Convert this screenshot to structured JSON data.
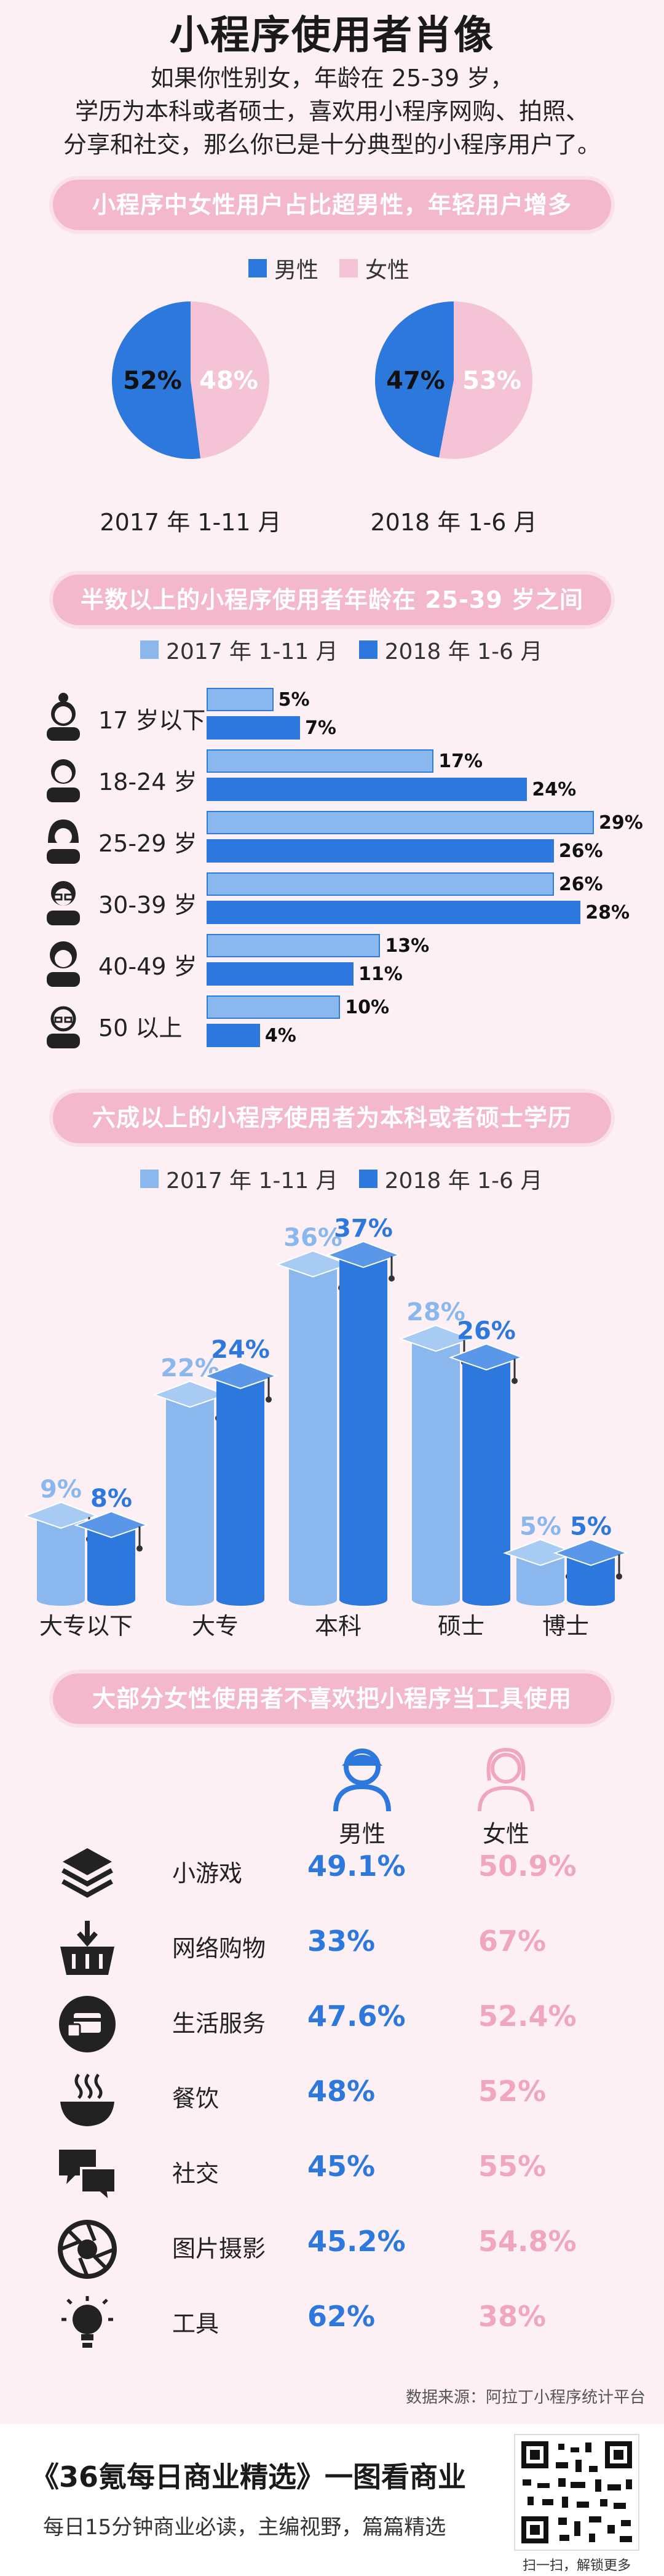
{
  "header": {
    "title": "小程序使用者肖像",
    "intro_lines": [
      "如果你性别女，年龄在 25-39 岁，",
      "学历为本科或者硕士，喜欢用小程序网购、拍照、",
      "分享和社交，那么你已是十分典型的小程序用户了。"
    ]
  },
  "colors": {
    "male": "#2d78dd",
    "female": "#f4c4d6",
    "y2017": "#8ab8ee",
    "y2018": "#2d78dd",
    "accent_pink": "#f4b8cc"
  },
  "sections": {
    "gender": "小程序中女性用户占比超男性，年轻用户增多",
    "age": "半数以上的小程序使用者年龄在 25-39 岁之间",
    "edu": "六成以上的小程序使用者为本科或者硕士学历",
    "pref": "大部分女性使用者不喜欢把小程序当工具使用"
  },
  "legends": {
    "gender": [
      "男性",
      "女性"
    ],
    "year": [
      "2017 年 1-11 月",
      "2018 年 1-6 月"
    ]
  },
  "chart_data": [
    {
      "type": "pie",
      "title": "2017 年 1-11 月",
      "labels": [
        "男性",
        "女性"
      ],
      "values": [
        52,
        48
      ],
      "value_labels": [
        "52%",
        "48%"
      ]
    },
    {
      "type": "pie",
      "title": "2018 年 1-6 月",
      "labels": [
        "男性",
        "女性"
      ],
      "values": [
        47,
        53
      ],
      "value_labels": [
        "47%",
        "53%"
      ]
    },
    {
      "type": "bar",
      "orientation": "horizontal",
      "categories": [
        "17 岁以下",
        "18-24 岁",
        "25-29 岁",
        "30-39 岁",
        "40-49 岁",
        "50 以上"
      ],
      "series": [
        {
          "name": "2017 年 1-11 月",
          "values": [
            5,
            17,
            29,
            26,
            13,
            10
          ],
          "value_labels": [
            "5%",
            "17%",
            "29%",
            "26%",
            "13%",
            "10%"
          ]
        },
        {
          "name": "2018 年 1-6 月",
          "values": [
            7,
            24,
            26,
            28,
            11,
            4
          ],
          "value_labels": [
            "7%",
            "24%",
            "26%",
            "28%",
            "11%",
            "4%"
          ]
        }
      ],
      "xlim": [
        0,
        29
      ]
    },
    {
      "type": "bar",
      "categories": [
        "大专以下",
        "大专",
        "本科",
        "硕士",
        "博士"
      ],
      "series": [
        {
          "name": "2017 年 1-11 月",
          "values": [
            9,
            22,
            36,
            28,
            5
          ],
          "value_labels": [
            "9%",
            "22%",
            "36%",
            "28%",
            "5%"
          ]
        },
        {
          "name": "2018 年 1-6 月",
          "values": [
            8,
            24,
            37,
            26,
            5
          ],
          "value_labels": [
            "8%",
            "24%",
            "37%",
            "26%",
            "5%"
          ]
        }
      ],
      "ylim": [
        0,
        37
      ]
    },
    {
      "type": "table",
      "columns": [
        "男性",
        "女性"
      ],
      "rows": [
        {
          "label": "小游戏",
          "icon": "cake-icon",
          "male": "49.1%",
          "female": "50.9%"
        },
        {
          "label": "网络购物",
          "icon": "basket-icon",
          "male": "33%",
          "female": "67%"
        },
        {
          "label": "生活服务",
          "icon": "card-icon",
          "male": "47.6%",
          "female": "52.4%"
        },
        {
          "label": "餐饮",
          "icon": "bowl-icon",
          "male": "48%",
          "female": "52%"
        },
        {
          "label": "社交",
          "icon": "chat-icon",
          "male": "45%",
          "female": "55%"
        },
        {
          "label": "图片摄影",
          "icon": "aperture-icon",
          "male": "45.2%",
          "female": "54.8%"
        },
        {
          "label": "工具",
          "icon": "lightbulb-icon",
          "male": "62%",
          "female": "38%"
        }
      ]
    }
  ],
  "source": "数据来源：阿拉丁小程序统计平台",
  "footer": {
    "title": "《36氪每日商业精选》一图看商业",
    "subtitle": "每日15分钟商业必读，主编视野，篇篇精选",
    "qr_caption": "扫一扫，解锁更多"
  }
}
